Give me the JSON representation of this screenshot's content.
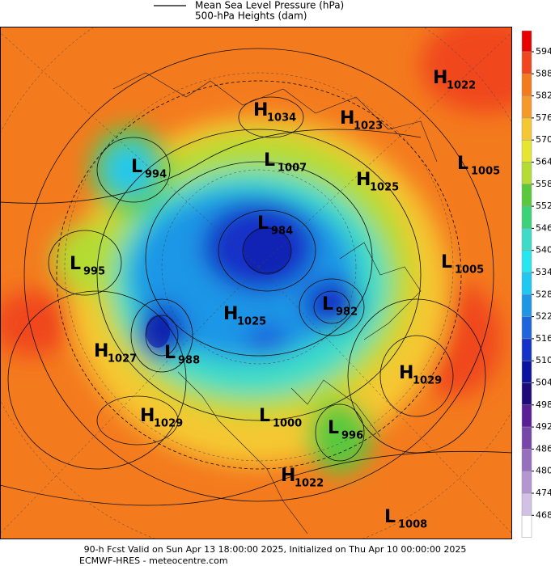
{
  "legend": {
    "mslp": "Mean Sea Level Pressure (hPa)",
    "heights": "500-hPa Heights (dam)"
  },
  "colorbar": {
    "ticks": [
      594,
      588,
      582,
      576,
      570,
      564,
      558,
      552,
      546,
      540,
      534,
      528,
      522,
      516,
      510,
      504,
      498,
      492,
      486,
      480,
      474,
      468
    ],
    "colors": [
      "#e60000",
      "#f0461e",
      "#f47a1e",
      "#f59a28",
      "#f5c832",
      "#e6e632",
      "#b4dc32",
      "#5ac83c",
      "#3cd278",
      "#3cdcc8",
      "#28e6f0",
      "#1ec8f0",
      "#1e96e6",
      "#1e64dc",
      "#1432c8",
      "#0a14a0",
      "#1e0a78",
      "#5a1e96",
      "#7846aa",
      "#9670be",
      "#b496d2",
      "#d2c0e6",
      "#ffffff"
    ]
  },
  "centers": [
    {
      "kind": "H",
      "value": 1022
    },
    {
      "kind": "H",
      "value": 1034
    },
    {
      "kind": "H",
      "value": 1023
    },
    {
      "kind": "L",
      "value": 994
    },
    {
      "kind": "L",
      "value": 1007
    },
    {
      "kind": "H",
      "value": 1025
    },
    {
      "kind": "L",
      "value": 1005
    },
    {
      "kind": "L",
      "value": 984
    },
    {
      "kind": "L",
      "value": 1005
    },
    {
      "kind": "L",
      "value": 995
    },
    {
      "kind": "L",
      "value": 982
    },
    {
      "kind": "H",
      "value": 1025
    },
    {
      "kind": "H",
      "value": 1027
    },
    {
      "kind": "L",
      "value": 988
    },
    {
      "kind": "H",
      "value": 1029
    },
    {
      "kind": "H",
      "value": 1029
    },
    {
      "kind": "L",
      "value": 1000
    },
    {
      "kind": "L",
      "value": 996
    },
    {
      "kind": "H",
      "value": 1022
    },
    {
      "kind": "L",
      "value": 1008
    }
  ],
  "footer": {
    "line1": "90-h Fcst Valid on Sun Apr 13 18:00:00 2025, Initialized on Thu Apr 10 00:00:00 2025",
    "line2": "ECMWF-HRES  - meteocentre.com"
  }
}
